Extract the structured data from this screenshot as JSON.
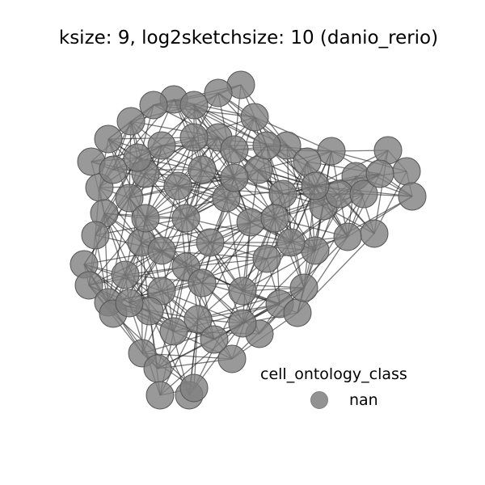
{
  "title": "ksize: 9, log2sketchsize: 10 (danio_rerio)",
  "legend": {
    "title": "cell_ontology_class",
    "entries": [
      {
        "label": "nan",
        "color": "#808080"
      }
    ]
  },
  "colors": {
    "node_fill": "#808080",
    "node_stroke": "#555555",
    "edge": "#222222"
  }
}
